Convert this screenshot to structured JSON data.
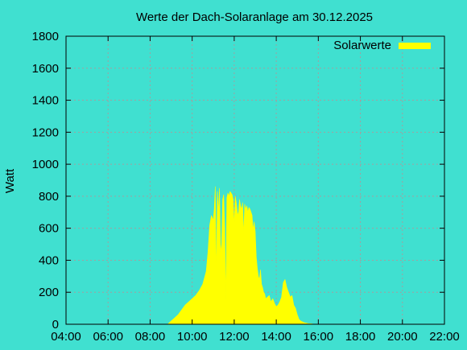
{
  "colors": {
    "background": "#40e0d0",
    "series": "#ffff00",
    "grid": "#a0a0a0",
    "axis": "#000000"
  },
  "chart_data": {
    "type": "area",
    "title": "Werte der Dach-Solaranlage am 30.12.2025",
    "xlabel": "",
    "ylabel": "Watt",
    "x_is_time": true,
    "xlim": [
      "04:00",
      "22:00"
    ],
    "ylim": [
      0,
      1800
    ],
    "xticks": [
      "04:00",
      "06:00",
      "08:00",
      "10:00",
      "12:00",
      "14:00",
      "16:00",
      "18:00",
      "20:00",
      "22:00"
    ],
    "yticks": [
      0,
      200,
      400,
      600,
      800,
      1000,
      1200,
      1400,
      1600,
      1800
    ],
    "grid": true,
    "legend_position": "top-right",
    "series": [
      {
        "name": "Solarwerte",
        "x": [
          "08:50",
          "09:00",
          "09:10",
          "09:20",
          "09:30",
          "09:40",
          "09:50",
          "10:00",
          "10:10",
          "10:20",
          "10:30",
          "10:40",
          "10:45",
          "10:50",
          "10:55",
          "11:00",
          "11:03",
          "11:06",
          "11:09",
          "11:12",
          "11:15",
          "11:18",
          "11:21",
          "11:24",
          "11:27",
          "11:30",
          "11:33",
          "11:36",
          "11:39",
          "11:42",
          "11:45",
          "11:48",
          "11:51",
          "11:54",
          "11:57",
          "12:00",
          "12:03",
          "12:06",
          "12:09",
          "12:12",
          "12:15",
          "12:18",
          "12:21",
          "12:24",
          "12:27",
          "12:30",
          "12:33",
          "12:36",
          "12:39",
          "12:42",
          "12:45",
          "12:48",
          "12:51",
          "12:54",
          "12:57",
          "13:00",
          "13:03",
          "13:06",
          "13:09",
          "13:12",
          "13:15",
          "13:18",
          "13:21",
          "13:24",
          "13:27",
          "13:30",
          "13:35",
          "13:40",
          "13:45",
          "13:50",
          "13:55",
          "14:00",
          "14:05",
          "14:10",
          "14:15",
          "14:20",
          "14:25",
          "14:30",
          "14:35",
          "14:40",
          "14:45",
          "14:50",
          "14:55",
          "15:00",
          "15:05",
          "15:10",
          "15:15",
          "15:20",
          "15:25",
          "15:30",
          "15:40",
          "15:50",
          "16:00"
        ],
        "y": [
          0,
          20,
          40,
          60,
          90,
          120,
          140,
          160,
          180,
          210,
          250,
          330,
          450,
          620,
          680,
          650,
          720,
          860,
          300,
          830,
          700,
          850,
          450,
          500,
          780,
          810,
          600,
          150,
          790,
          820,
          800,
          830,
          820,
          810,
          780,
          620,
          800,
          760,
          700,
          680,
          780,
          740,
          720,
          760,
          560,
          750,
          720,
          740,
          700,
          730,
          720,
          700,
          680,
          590,
          640,
          580,
          420,
          350,
          300,
          280,
          340,
          250,
          230,
          200,
          190,
          160,
          170,
          180,
          140,
          160,
          130,
          110,
          120,
          140,
          170,
          260,
          280,
          230,
          200,
          170,
          180,
          120,
          100,
          60,
          30,
          20,
          15,
          10,
          8,
          5,
          3,
          0,
          0
        ]
      }
    ]
  }
}
